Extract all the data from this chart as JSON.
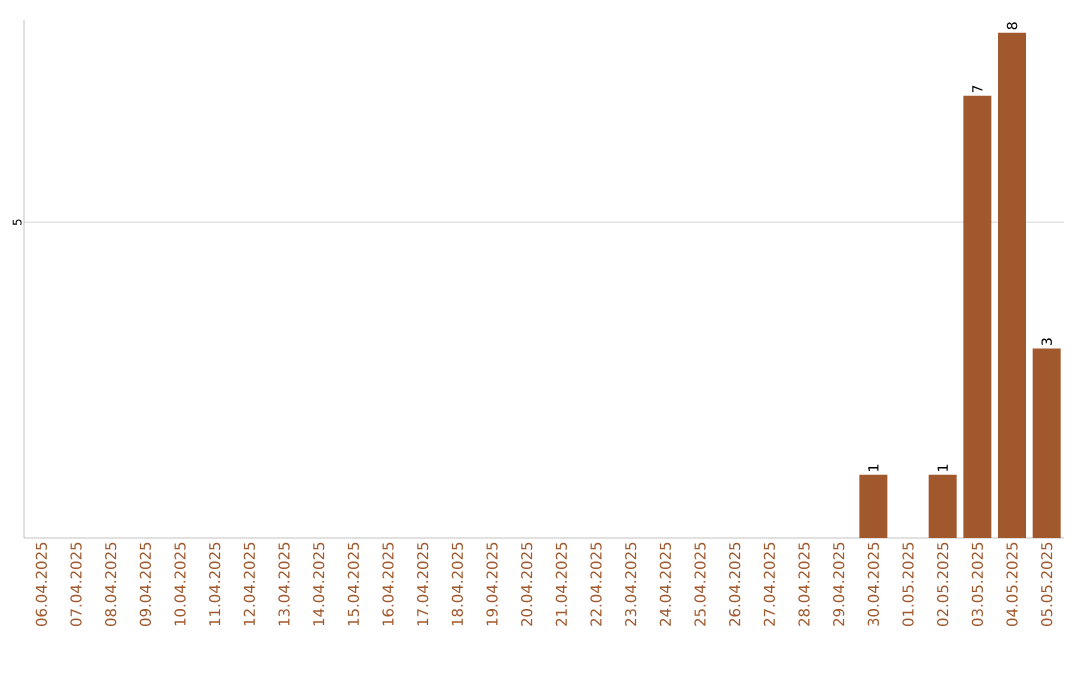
{
  "chart_data": {
    "type": "bar",
    "categories": [
      "06.04.2025",
      "07.04.2025",
      "08.04.2025",
      "09.04.2025",
      "10.04.2025",
      "11.04.2025",
      "12.04.2025",
      "13.04.2025",
      "14.04.2025",
      "15.04.2025",
      "16.04.2025",
      "17.04.2025",
      "18.04.2025",
      "19.04.2025",
      "20.04.2025",
      "21.04.2025",
      "22.04.2025",
      "23.04.2025",
      "24.04.2025",
      "25.04.2025",
      "26.04.2025",
      "27.04.2025",
      "28.04.2025",
      "29.04.2025",
      "30.04.2025",
      "01.05.2025",
      "02.05.2025",
      "03.05.2025",
      "04.05.2025",
      "05.05.2025"
    ],
    "values": [
      null,
      null,
      null,
      null,
      null,
      null,
      null,
      null,
      null,
      null,
      null,
      null,
      null,
      null,
      null,
      null,
      null,
      null,
      null,
      null,
      null,
      null,
      null,
      null,
      1,
      null,
      1,
      7,
      8,
      3
    ],
    "color": "#a0582c",
    "data_labels": true,
    "ylim": [
      0,
      8.2
    ],
    "yticks": [
      5
    ],
    "grid": "y"
  }
}
